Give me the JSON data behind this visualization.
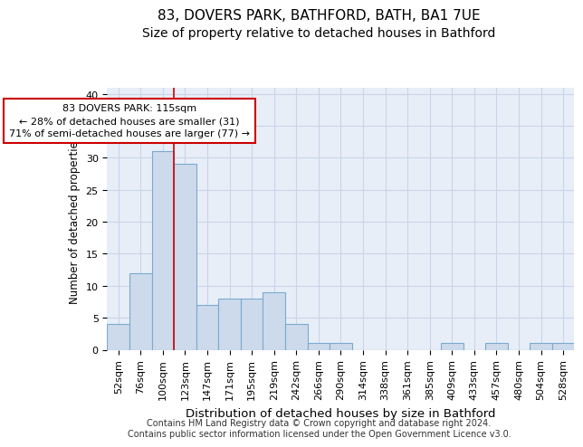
{
  "title1": "83, DOVERS PARK, BATHFORD, BATH, BA1 7UE",
  "title2": "Size of property relative to detached houses in Bathford",
  "xlabel": "Distribution of detached houses by size in Bathford",
  "ylabel": "Number of detached properties",
  "categories": [
    "52sqm",
    "76sqm",
    "100sqm",
    "123sqm",
    "147sqm",
    "171sqm",
    "195sqm",
    "219sqm",
    "242sqm",
    "266sqm",
    "290sqm",
    "314sqm",
    "338sqm",
    "361sqm",
    "385sqm",
    "409sqm",
    "433sqm",
    "457sqm",
    "480sqm",
    "504sqm",
    "528sqm"
  ],
  "values": [
    4,
    12,
    31,
    29,
    7,
    8,
    8,
    9,
    4,
    1,
    1,
    0,
    0,
    0,
    0,
    1,
    0,
    1,
    0,
    1,
    1
  ],
  "bar_color": "#ccdaec",
  "bar_edge_color": "#7aaad0",
  "vline_index": 2,
  "vline_color": "#cc0000",
  "annotation_line1": "83 DOVERS PARK: 115sqm",
  "annotation_line2": "← 28% of detached houses are smaller (31)",
  "annotation_line3": "71% of semi-detached houses are larger (77) →",
  "annotation_box_color": "white",
  "annotation_box_edge": "#cc0000",
  "ylim": [
    0,
    41
  ],
  "yticks": [
    0,
    5,
    10,
    15,
    20,
    25,
    30,
    35,
    40
  ],
  "grid_color": "#c8d4e8",
  "plot_bg_color": "#e8eef8",
  "footnote": "Contains HM Land Registry data © Crown copyright and database right 2024.\nContains public sector information licensed under the Open Government Licence v3.0.",
  "title1_fontsize": 11,
  "title2_fontsize": 10,
  "xlabel_fontsize": 9.5,
  "ylabel_fontsize": 8.5,
  "tick_fontsize": 8,
  "annotation_fontsize": 8,
  "footnote_fontsize": 7
}
